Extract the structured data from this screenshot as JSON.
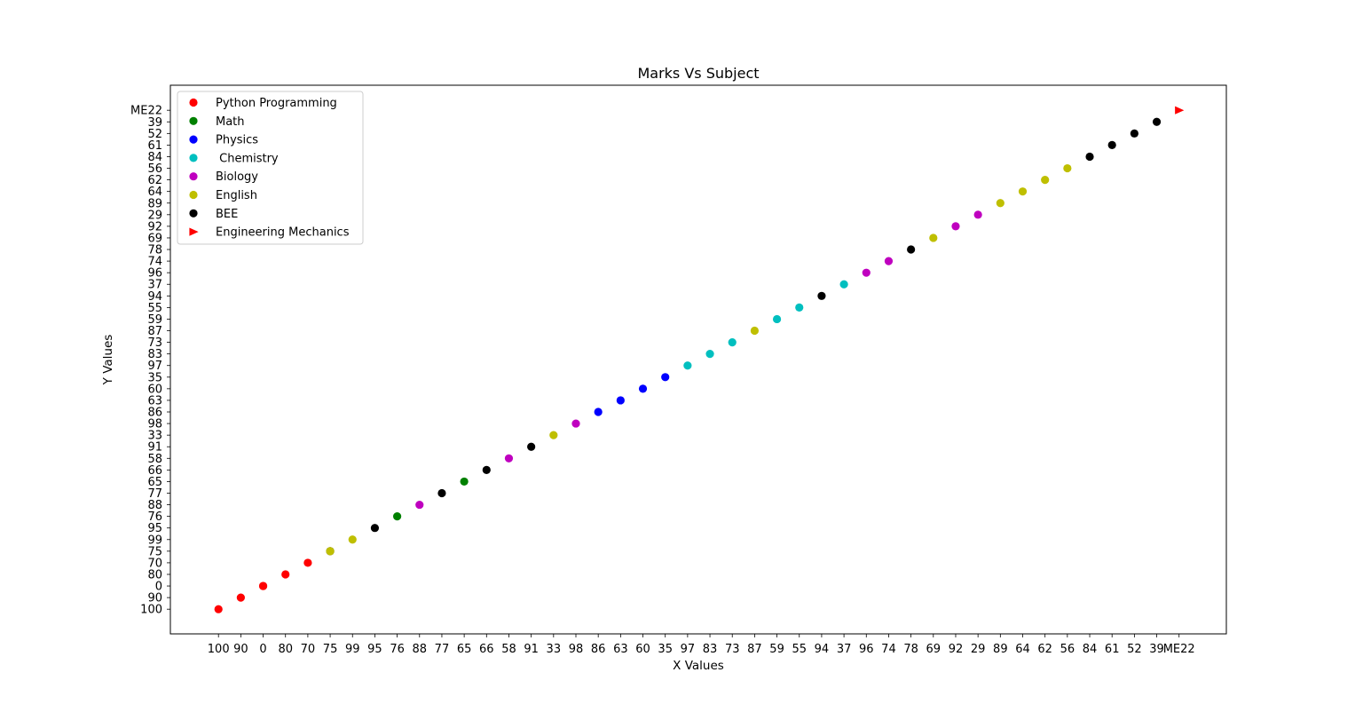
{
  "chart_data": {
    "type": "scatter",
    "title": "Marks Vs Subject",
    "xlabel": "X Values",
    "ylabel": "Y Values",
    "categories": [
      "100",
      "90",
      "0",
      "80",
      "70",
      "75",
      "99",
      "95",
      "76",
      "88",
      "77",
      "65",
      "66",
      "58",
      "91",
      "33",
      "98",
      "86",
      "63",
      "60",
      "35",
      "97",
      "83",
      "73",
      "87",
      "59",
      "55",
      "94",
      "37",
      "96",
      "74",
      "78",
      "69",
      "92",
      "29",
      "89",
      "64",
      "62",
      "56",
      "84",
      "61",
      "52",
      "39",
      "ME22"
    ],
    "legend_position": "top-left",
    "series": [
      {
        "name": "Python Programming",
        "color": "#ff0000",
        "marker": "circle",
        "points": [
          [
            "100",
            "100"
          ],
          [
            "90",
            "90"
          ],
          [
            "0",
            "0"
          ],
          [
            "0",
            "0"
          ],
          [
            "80",
            "80"
          ],
          [
            "70",
            "70"
          ],
          [
            "75",
            "75"
          ]
        ]
      },
      {
        "name": "Math",
        "color": "#008000",
        "marker": "circle",
        "points": [
          [
            "75",
            "75"
          ],
          [
            "76",
            "76"
          ],
          [
            "65",
            "65"
          ]
        ]
      },
      {
        "name": "Physics",
        "color": "#0000ff",
        "marker": "circle",
        "points": [
          [
            "86",
            "86"
          ],
          [
            "63",
            "63"
          ],
          [
            "60",
            "60"
          ],
          [
            "35",
            "35"
          ]
        ]
      },
      {
        "name": " Chemistry",
        "color": "#00bfbf",
        "marker": "circle",
        "points": [
          [
            "97",
            "97"
          ],
          [
            "83",
            "83"
          ],
          [
            "73",
            "73"
          ],
          [
            "59",
            "59"
          ],
          [
            "55",
            "55"
          ],
          [
            "37",
            "37"
          ]
        ]
      },
      {
        "name": "Biology",
        "color": "#bf00bf",
        "marker": "circle",
        "points": [
          [
            "88",
            "88"
          ],
          [
            "58",
            "58"
          ],
          [
            "98",
            "98"
          ],
          [
            "96",
            "96"
          ],
          [
            "74",
            "74"
          ],
          [
            "92",
            "92"
          ],
          [
            "29",
            "29"
          ]
        ]
      },
      {
        "name": "English",
        "color": "#bfbf00",
        "marker": "circle",
        "points": [
          [
            "75",
            "75"
          ],
          [
            "99",
            "99"
          ],
          [
            "33",
            "33"
          ],
          [
            "87",
            "87"
          ],
          [
            "69",
            "69"
          ],
          [
            "89",
            "89"
          ],
          [
            "64",
            "64"
          ],
          [
            "62",
            "62"
          ],
          [
            "56",
            "56"
          ]
        ]
      },
      {
        "name": "BEE",
        "color": "#000000",
        "marker": "circle",
        "points": [
          [
            "95",
            "95"
          ],
          [
            "77",
            "77"
          ],
          [
            "66",
            "66"
          ],
          [
            "91",
            "91"
          ],
          [
            "94",
            "94"
          ],
          [
            "78",
            "78"
          ],
          [
            "84",
            "84"
          ],
          [
            "61",
            "61"
          ],
          [
            "52",
            "52"
          ],
          [
            "39",
            "39"
          ]
        ]
      },
      {
        "name": "Engineering Mechanics",
        "color": "#ff0000",
        "marker": "triangle-right",
        "points": [
          [
            "ME22",
            "ME22"
          ]
        ]
      }
    ]
  }
}
